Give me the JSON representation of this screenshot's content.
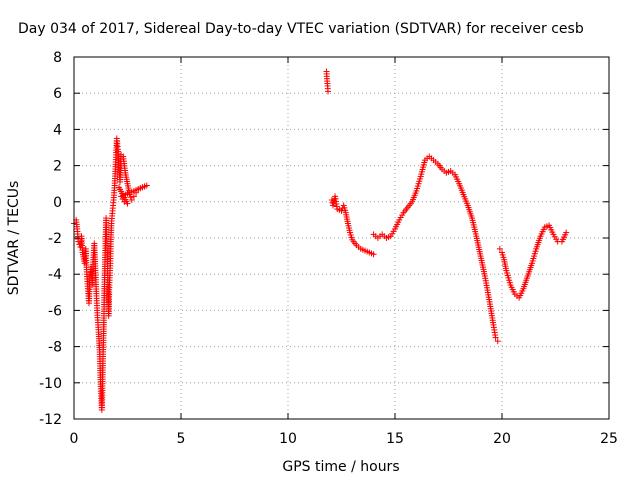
{
  "chart_data": {
    "type": "scatter",
    "title": "Day 034 of 2017, Sidereal Day-to-day VTEC variation (SDTVAR) for receiver cesb",
    "xlabel": "GPS time / hours",
    "ylabel": "SDTVAR / TECUs",
    "xlim": [
      0,
      25
    ],
    "ylim": [
      -12,
      8
    ],
    "xticks": [
      0,
      5,
      10,
      15,
      20,
      25
    ],
    "yticks": [
      -12,
      -10,
      -8,
      -6,
      -4,
      -2,
      0,
      2,
      4,
      6,
      8
    ],
    "xtick_labels": [
      "0",
      "5",
      "10",
      "15",
      "20",
      "25"
    ],
    "ytick_labels": [
      "-12",
      "-10",
      "-8",
      "-6",
      "-4",
      "-2",
      "0",
      "2",
      "4",
      "6",
      "8"
    ],
    "grid": true,
    "marker": "+",
    "color": "#ff0000",
    "series": [
      {
        "name": "cesb",
        "segments": [
          [
            [
              0.0,
              -1.2
            ],
            [
              0.1,
              -1.0
            ],
            [
              0.15,
              -1.5
            ],
            [
              0.2,
              -2.2
            ],
            [
              0.3,
              -2.5
            ],
            [
              0.35,
              -1.9
            ],
            [
              0.4,
              -2.8
            ],
            [
              0.5,
              -3.4
            ],
            [
              0.55,
              -2.6
            ],
            [
              0.6,
              -4.0
            ],
            [
              0.65,
              -4.8
            ],
            [
              0.7,
              -5.6
            ],
            [
              0.75,
              -4.2
            ],
            [
              0.8,
              -3.6
            ],
            [
              0.85,
              -4.6
            ],
            [
              0.9,
              -3.2
            ],
            [
              0.95,
              -2.3
            ],
            [
              1.0,
              -3.8
            ],
            [
              1.05,
              -5.2
            ],
            [
              1.1,
              -6.4
            ],
            [
              1.15,
              -7.2
            ],
            [
              1.2,
              -8.3
            ],
            [
              1.22,
              -9.2
            ],
            [
              1.25,
              -10.2
            ],
            [
              1.28,
              -11.0
            ],
            [
              1.3,
              -11.5
            ],
            [
              1.32,
              -10.8
            ],
            [
              1.35,
              -8.8
            ],
            [
              1.38,
              -7.4
            ],
            [
              1.4,
              -6.3
            ],
            [
              1.42,
              -4.8
            ],
            [
              1.45,
              -3.2
            ],
            [
              1.48,
              -1.8
            ],
            [
              1.5,
              -0.9
            ],
            [
              1.55,
              -2.8
            ],
            [
              1.6,
              -5.2
            ],
            [
              1.62,
              -6.3
            ],
            [
              1.65,
              -4.6
            ],
            [
              1.7,
              -3.4
            ],
            [
              1.72,
              -2.2
            ],
            [
              1.75,
              -1.2
            ],
            [
              1.8,
              -0.5
            ],
            [
              1.85,
              0.1
            ],
            [
              1.9,
              0.9
            ],
            [
              1.95,
              2.2
            ],
            [
              2.0,
              3.5
            ],
            [
              2.05,
              2.9
            ],
            [
              2.1,
              1.9
            ],
            [
              2.15,
              1.1
            ],
            [
              2.2,
              2.6
            ],
            [
              2.3,
              2.5
            ],
            [
              2.4,
              1.6
            ],
            [
              2.5,
              1.0
            ],
            [
              2.6,
              0.4
            ],
            [
              2.7,
              0.1
            ],
            [
              2.8,
              0.3
            ],
            [
              2.9,
              0.5
            ],
            [
              3.0,
              0.7
            ],
            [
              3.2,
              0.8
            ],
            [
              3.4,
              0.9
            ],
            [
              2.2,
              0.3
            ],
            [
              2.35,
              0.0
            ],
            [
              2.5,
              -0.1
            ],
            [
              2.1,
              0.8
            ]
          ],
          [
            [
              11.8,
              7.2
            ],
            [
              11.82,
              6.8
            ],
            [
              11.85,
              6.4
            ],
            [
              11.87,
              6.1
            ]
          ],
          [
            [
              12.05,
              0.1
            ],
            [
              12.1,
              -0.2
            ],
            [
              12.2,
              0.3
            ],
            [
              12.3,
              -0.4
            ],
            [
              12.5,
              -0.5
            ],
            [
              12.6,
              -0.2
            ],
            [
              12.7,
              -0.6
            ],
            [
              12.8,
              -1.2
            ],
            [
              12.9,
              -1.7
            ],
            [
              13.0,
              -2.1
            ],
            [
              13.2,
              -2.4
            ],
            [
              13.4,
              -2.6
            ],
            [
              13.6,
              -2.7
            ],
            [
              13.8,
              -2.8
            ],
            [
              14.0,
              -2.9
            ]
          ],
          [
            [
              14.0,
              -1.8
            ],
            [
              14.2,
              -2.0
            ],
            [
              14.4,
              -1.8
            ],
            [
              14.6,
              -2.0
            ],
            [
              14.8,
              -1.9
            ],
            [
              15.0,
              -1.5
            ],
            [
              15.2,
              -1.0
            ],
            [
              15.4,
              -0.6
            ],
            [
              15.6,
              -0.3
            ],
            [
              15.8,
              0.0
            ],
            [
              16.0,
              0.6
            ],
            [
              16.2,
              1.4
            ],
            [
              16.4,
              2.3
            ],
            [
              16.6,
              2.5
            ],
            [
              16.8,
              2.3
            ],
            [
              17.0,
              2.1
            ],
            [
              17.2,
              1.8
            ],
            [
              17.4,
              1.6
            ],
            [
              17.6,
              1.7
            ],
            [
              17.8,
              1.5
            ],
            [
              18.0,
              1.0
            ],
            [
              18.2,
              0.4
            ],
            [
              18.4,
              -0.2
            ],
            [
              18.6,
              -0.9
            ],
            [
              18.8,
              -1.9
            ],
            [
              19.0,
              -3.0
            ],
            [
              19.2,
              -4.1
            ],
            [
              19.4,
              -5.4
            ],
            [
              19.6,
              -6.8
            ],
            [
              19.7,
              -7.5
            ],
            [
              19.8,
              -7.7
            ]
          ],
          [
            [
              19.9,
              -2.6
            ],
            [
              20.0,
              -2.8
            ],
            [
              20.1,
              -3.2
            ],
            [
              20.2,
              -3.8
            ],
            [
              20.4,
              -4.6
            ],
            [
              20.6,
              -5.1
            ],
            [
              20.8,
              -5.3
            ],
            [
              21.0,
              -4.8
            ],
            [
              21.2,
              -4.1
            ],
            [
              21.4,
              -3.4
            ],
            [
              21.6,
              -2.6
            ],
            [
              21.8,
              -1.9
            ],
            [
              22.0,
              -1.4
            ],
            [
              22.2,
              -1.3
            ],
            [
              22.4,
              -1.8
            ],
            [
              22.6,
              -2.2
            ],
            [
              22.8,
              -2.2
            ],
            [
              23.0,
              -1.7
            ]
          ]
        ]
      }
    ]
  }
}
